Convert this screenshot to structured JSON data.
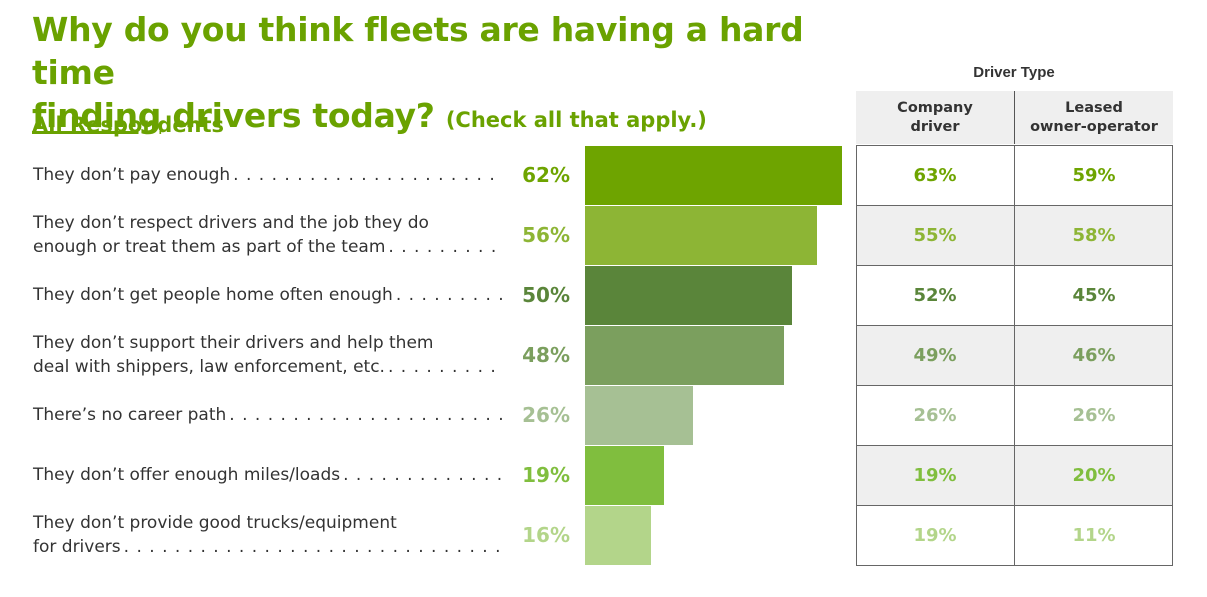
{
  "title": {
    "line1": "Why do you think fleets are having a hard time",
    "line2_underlined": "finding",
    "line2_rest": " drivers today?",
    "note": "(Check all that apply.)"
  },
  "subtitle": "All Respondents",
  "table": {
    "group_header": "Driver Type",
    "col_company": [
      "Company",
      "driver"
    ],
    "col_leased": [
      "Leased",
      "owner-operator"
    ]
  },
  "chart_data": {
    "type": "bar",
    "orientation": "horizontal",
    "title": "Why do you think fleets are having a hard time finding drivers today? (Check all that apply.)",
    "subtitle": "All Respondents",
    "categories": [
      "They don’t pay enough",
      "They don’t respect drivers and the job they do enough or treat them as part of the team",
      "They don’t get people home often enough",
      "They don’t support their drivers and help them deal with shippers, law enforcement, etc.",
      "There’s no career path",
      "They don’t offer enough miles/loads",
      "They don’t provide good trucks/equipment for drivers"
    ],
    "label_lines": [
      [
        "They don’t pay enough"
      ],
      [
        "They don’t respect drivers and the job they do",
        "enough or treat them as part of the team"
      ],
      [
        "They don’t get people home often enough"
      ],
      [
        "They don’t support their drivers and help them",
        "deal with shippers, law enforcement, etc."
      ],
      [
        "There’s no career path"
      ],
      [
        "They don’t offer enough miles/loads"
      ],
      [
        "They don’t provide good trucks/equipment",
        "for drivers"
      ]
    ],
    "series": [
      {
        "values": [
          62,
          56,
          50,
          48,
          26,
          19,
          16
        ]
      },
      {
        "name": "Company driver",
        "values": [
          63,
          55,
          52,
          49,
          26,
          19,
          19
        ]
      },
      {
        "name": "Leased owner-operator",
        "values": [
          59,
          58,
          45,
          46,
          26,
          20,
          11
        ]
      }
    ],
    "value_labels": [
      "62%",
      "56%",
      "50%",
      "48%",
      "26%",
      "19%",
      "16%"
    ],
    "company_labels": [
      "63%",
      "55%",
      "52%",
      "49%",
      "26%",
      "19%",
      "19%"
    ],
    "leased_labels": [
      "59%",
      "58%",
      "45%",
      "46%",
      "26%",
      "20%",
      "11%"
    ],
    "colors": [
      "#6ea400",
      "#8db535",
      "#5a853a",
      "#7b9f5e",
      "#a6c094",
      "#80be3e",
      "#b3d58a"
    ],
    "xlim": [
      0,
      100
    ],
    "grid": false,
    "legend": "none"
  }
}
